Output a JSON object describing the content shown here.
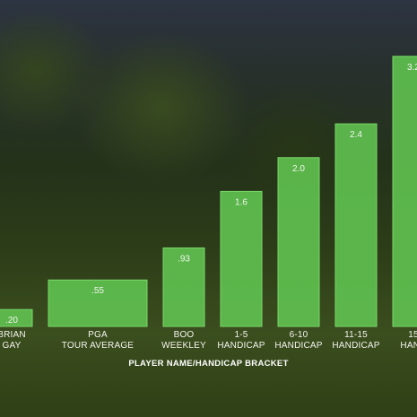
{
  "chart_data": {
    "type": "bar",
    "categories": [
      [
        "BRIAN",
        "GAY"
      ],
      [
        "PGA",
        "TOUR AVERAGE"
      ],
      [
        "BOO",
        "WEEKLEY"
      ],
      [
        "1-5",
        "HANDICAP"
      ],
      [
        "6-10",
        "HANDICAP"
      ],
      [
        "11-15",
        "HANDICAP"
      ],
      [
        "15",
        "HAND"
      ]
    ],
    "values": [
      0.2,
      0.55,
      0.93,
      1.6,
      2.0,
      2.4,
      3.2
    ],
    "value_labels": [
      ".20",
      ".55",
      ".93",
      "1.6",
      "2.0",
      "2.4",
      "3.2"
    ],
    "xlabel": "PLAYER NAME/HANDICAP BRACKET",
    "ylabel": "",
    "ylim": [
      0,
      3.4
    ],
    "grid": false,
    "colors": {
      "bar": "#5fbe4f",
      "bar_border": "#7ad86a",
      "text": "#f2f6ee"
    }
  }
}
